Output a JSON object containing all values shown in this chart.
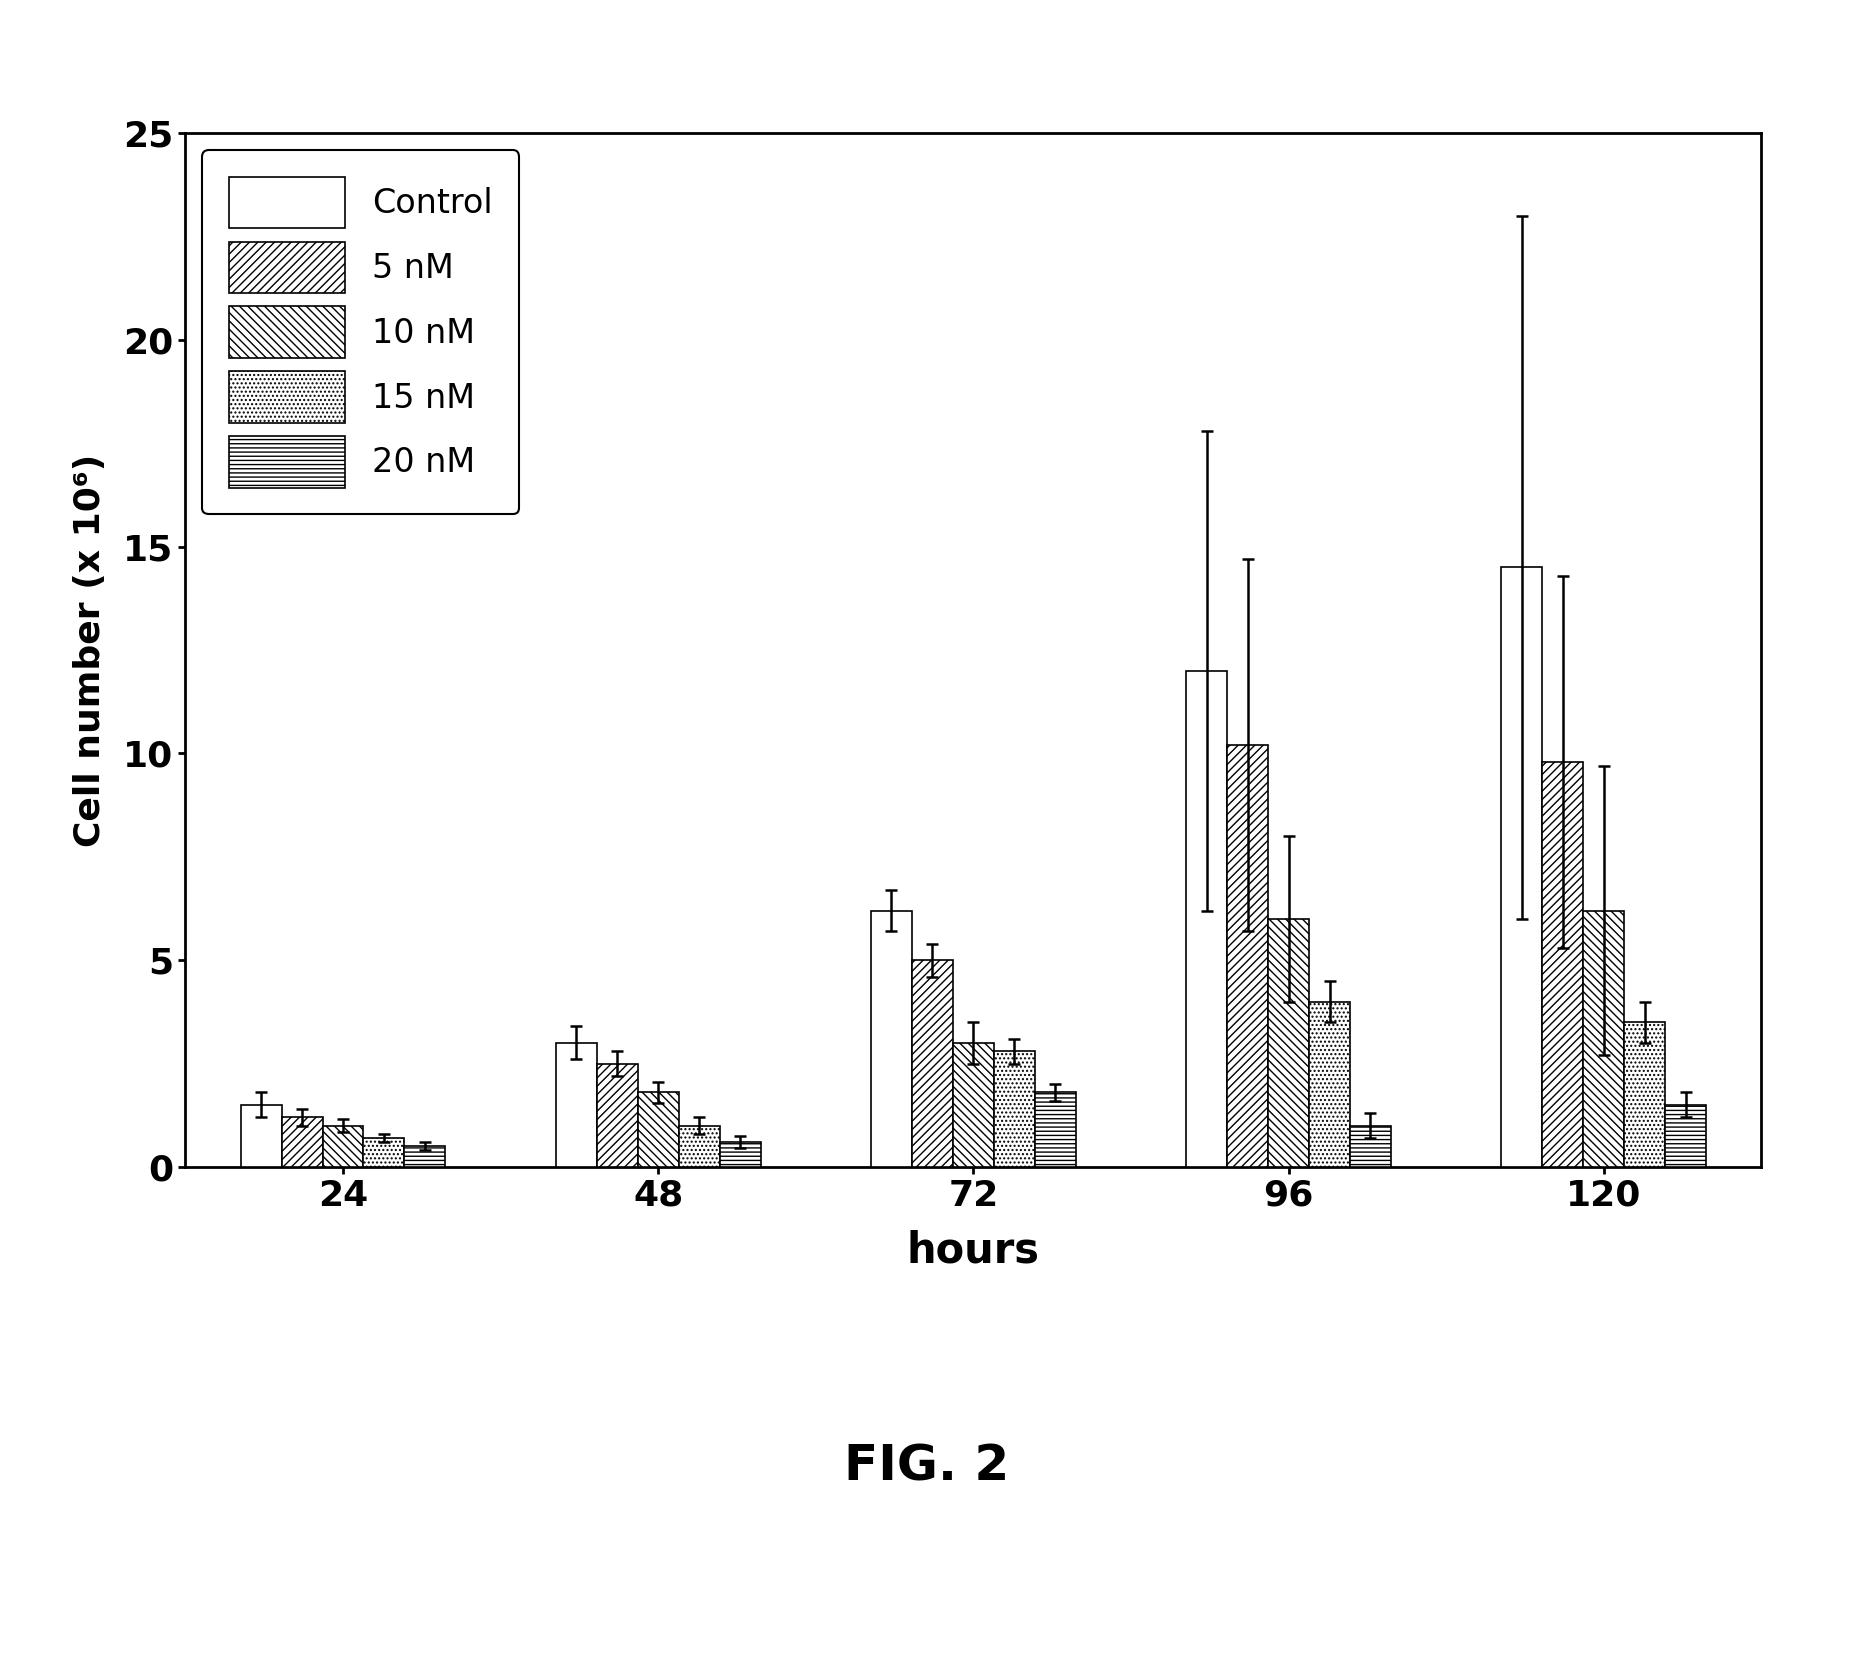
{
  "title": "FIG. 2",
  "xlabel": "hours",
  "ylabel": "Cell number (x 10⁶)",
  "ylim": [
    0,
    25
  ],
  "yticks": [
    0,
    5,
    10,
    15,
    20,
    25
  ],
  "time_points": [
    24,
    48,
    72,
    96,
    120
  ],
  "series_labels": [
    "Control",
    "5 nM",
    "10 nM",
    "15 nM",
    "20 nM"
  ],
  "values": {
    "Control": [
      1.5,
      3.0,
      6.2,
      12.0,
      14.5
    ],
    "5 nM": [
      1.2,
      2.5,
      5.0,
      10.2,
      9.8
    ],
    "10 nM": [
      1.0,
      1.8,
      3.0,
      6.0,
      6.2
    ],
    "15 nM": [
      0.7,
      1.0,
      2.8,
      4.0,
      3.5
    ],
    "20 nM": [
      0.5,
      0.6,
      1.8,
      1.0,
      1.5
    ]
  },
  "errors": {
    "Control": [
      0.3,
      0.4,
      0.5,
      5.8,
      8.5
    ],
    "5 nM": [
      0.2,
      0.3,
      0.4,
      4.5,
      4.5
    ],
    "10 nM": [
      0.15,
      0.25,
      0.5,
      2.0,
      3.5
    ],
    "15 nM": [
      0.1,
      0.2,
      0.3,
      0.5,
      0.5
    ],
    "20 nM": [
      0.1,
      0.15,
      0.2,
      0.3,
      0.3
    ]
  },
  "bar_width": 0.13,
  "background_color": "#ffffff",
  "bar_edge_color": "#000000",
  "hatches": [
    "",
    "////",
    "\\\\\\\\",
    "....",
    "----"
  ],
  "bar_face_colors": [
    "white",
    "white",
    "white",
    "white",
    "white"
  ]
}
